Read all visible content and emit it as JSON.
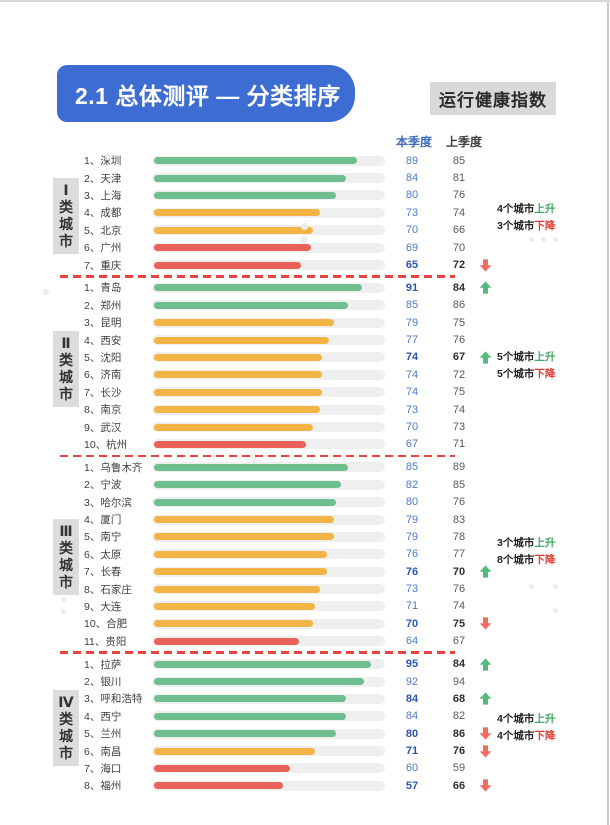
{
  "header": {
    "title": "2.1 总体测评 — 分类排序",
    "badge": "运行健康指数"
  },
  "colors": {
    "banner_blue": "#3d6dd2",
    "green": "#6fbe8f",
    "yellow": "#f2b444",
    "red": "#e9625a",
    "track": "#efefef",
    "current_value_blue": "#4c7ac9",
    "previous_value_gray": "#5a5a5a",
    "up": "#53b97e",
    "down": "#ef6d61",
    "separator_red": "#e8433f"
  },
  "chart_data": {
    "type": "bar",
    "orientation": "horizontal",
    "value_range": [
      0,
      100
    ],
    "series_names": [
      "本季度",
      "上季度"
    ],
    "groups": [
      {
        "label": "Ⅰ类城市",
        "rows": [
          {
            "label": "1、深圳",
            "current": 89,
            "previous": 85,
            "level": "green",
            "trend": ""
          },
          {
            "label": "2、天津",
            "current": 84,
            "previous": 81,
            "level": "green",
            "trend": ""
          },
          {
            "label": "3、上海",
            "current": 80,
            "previous": 76,
            "level": "green",
            "trend": ""
          },
          {
            "label": "4、成都",
            "current": 73,
            "previous": 74,
            "level": "yellow",
            "trend": ""
          },
          {
            "label": "5、北京",
            "current": 70,
            "previous": 66,
            "level": "yellow",
            "trend": ""
          },
          {
            "label": "6、广州",
            "current": 69,
            "previous": 70,
            "level": "red",
            "trend": ""
          },
          {
            "label": "7、重庆",
            "current": 65,
            "previous": 72,
            "level": "red",
            "trend": "down"
          }
        ],
        "summary": {
          "up_label": "4个城市",
          "up_word": "上升",
          "down_label": "3个城市",
          "down_word": "下降"
        }
      },
      {
        "label": "Ⅱ类城市",
        "rows": [
          {
            "label": "1、青岛",
            "current": 91,
            "previous": 84,
            "level": "green",
            "trend": "up"
          },
          {
            "label": "2、郑州",
            "current": 85,
            "previous": 86,
            "level": "green",
            "trend": ""
          },
          {
            "label": "3、昆明",
            "current": 79,
            "previous": 75,
            "level": "yellow",
            "trend": ""
          },
          {
            "label": "4、西安",
            "current": 77,
            "previous": 76,
            "level": "yellow",
            "trend": ""
          },
          {
            "label": "5、沈阳",
            "current": 74,
            "previous": 67,
            "level": "yellow",
            "trend": "up"
          },
          {
            "label": "6、济南",
            "current": 74,
            "previous": 72,
            "level": "yellow",
            "trend": ""
          },
          {
            "label": "7、长沙",
            "current": 74,
            "previous": 75,
            "level": "yellow",
            "trend": ""
          },
          {
            "label": "8、南京",
            "current": 73,
            "previous": 74,
            "level": "yellow",
            "trend": ""
          },
          {
            "label": "9、武汉",
            "current": 70,
            "previous": 73,
            "level": "yellow",
            "trend": ""
          },
          {
            "label": "10、杭州",
            "current": 67,
            "previous": 71,
            "level": "red",
            "trend": ""
          }
        ],
        "summary": {
          "up_label": "5个城市",
          "up_word": "上升",
          "down_label": "5个城市",
          "down_word": "下降"
        }
      },
      {
        "label": "Ⅲ类城市",
        "rows": [
          {
            "label": "1、乌鲁木齐",
            "current": 85,
            "previous": 89,
            "level": "green",
            "trend": ""
          },
          {
            "label": "2、宁波",
            "current": 82,
            "previous": 85,
            "level": "green",
            "trend": ""
          },
          {
            "label": "3、哈尔滨",
            "current": 80,
            "previous": 76,
            "level": "green",
            "trend": ""
          },
          {
            "label": "4、厦门",
            "current": 79,
            "previous": 83,
            "level": "yellow",
            "trend": ""
          },
          {
            "label": "5、南宁",
            "current": 79,
            "previous": 78,
            "level": "yellow",
            "trend": ""
          },
          {
            "label": "6、太原",
            "current": 76,
            "previous": 77,
            "level": "yellow",
            "trend": ""
          },
          {
            "label": "7、长春",
            "current": 76,
            "previous": 70,
            "level": "yellow",
            "trend": "up"
          },
          {
            "label": "8、石家庄",
            "current": 73,
            "previous": 76,
            "level": "yellow",
            "trend": ""
          },
          {
            "label": "9、大连",
            "current": 71,
            "previous": 74,
            "level": "yellow",
            "trend": ""
          },
          {
            "label": "10、合肥",
            "current": 70,
            "previous": 75,
            "level": "yellow",
            "trend": "down"
          },
          {
            "label": "11、贵阳",
            "current": 64,
            "previous": 67,
            "level": "red",
            "trend": ""
          }
        ],
        "summary": {
          "up_label": "3个城市",
          "up_word": "上升",
          "down_label": "8个城市",
          "down_word": "下降"
        }
      },
      {
        "label": "Ⅳ类城市",
        "rows": [
          {
            "label": "1、拉萨",
            "current": 95,
            "previous": 84,
            "level": "green",
            "trend": "up"
          },
          {
            "label": "2、银川",
            "current": 92,
            "previous": 94,
            "level": "green",
            "trend": ""
          },
          {
            "label": "3、呼和浩特",
            "current": 84,
            "previous": 68,
            "level": "green",
            "trend": "up"
          },
          {
            "label": "4、西宁",
            "current": 84,
            "previous": 82,
            "level": "green",
            "trend": ""
          },
          {
            "label": "5、兰州",
            "current": 80,
            "previous": 86,
            "level": "green",
            "trend": "down"
          },
          {
            "label": "6、南昌",
            "current": 71,
            "previous": 76,
            "level": "yellow",
            "trend": "down"
          },
          {
            "label": "7、海口",
            "current": 60,
            "previous": 59,
            "level": "red",
            "trend": ""
          },
          {
            "label": "8、福州",
            "current": 57,
            "previous": 66,
            "level": "red",
            "trend": "down"
          }
        ],
        "summary": {
          "up_label": "4个城市",
          "up_word": "上升",
          "down_label": "4个城市",
          "down_word": "下降"
        }
      }
    ]
  }
}
